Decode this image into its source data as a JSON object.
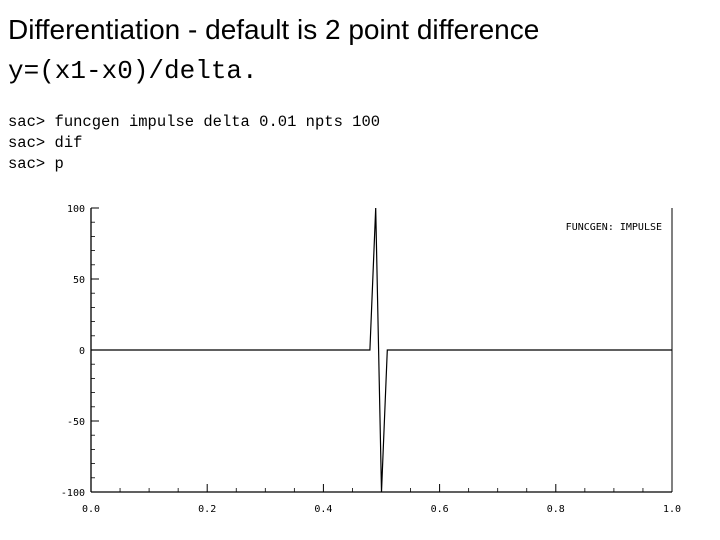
{
  "slide": {
    "title": "Differentiation - default is 2 point difference",
    "formula": "y=(x1-x0)/delta."
  },
  "console": {
    "prompt": "sac>",
    "lines": [
      {
        "prompt": "sac>",
        "command": "funcgen impulse delta 0.01 npts 100"
      },
      {
        "prompt": "sac>",
        "command": "dif"
      },
      {
        "prompt": "sac>",
        "command": "p"
      }
    ]
  },
  "chart_data": {
    "type": "line",
    "title": "",
    "xlabel": "",
    "ylabel": "",
    "plot_label": "FUNCGEN: IMPULSE",
    "xlim": [
      0.0,
      1.0
    ],
    "ylim": [
      -100,
      100
    ],
    "x_ticks": [
      "0.0",
      "0.2",
      "0.4",
      "0.6",
      "0.8",
      "1.0"
    ],
    "y_ticks": [
      "100",
      "50",
      "0",
      "-50",
      "-100"
    ],
    "grid": false,
    "series": [
      {
        "x": [
          0.0,
          0.48,
          0.49,
          0.5,
          0.51,
          1.0
        ],
        "y": [
          0,
          0,
          100,
          -100,
          0,
          0
        ]
      }
    ]
  }
}
